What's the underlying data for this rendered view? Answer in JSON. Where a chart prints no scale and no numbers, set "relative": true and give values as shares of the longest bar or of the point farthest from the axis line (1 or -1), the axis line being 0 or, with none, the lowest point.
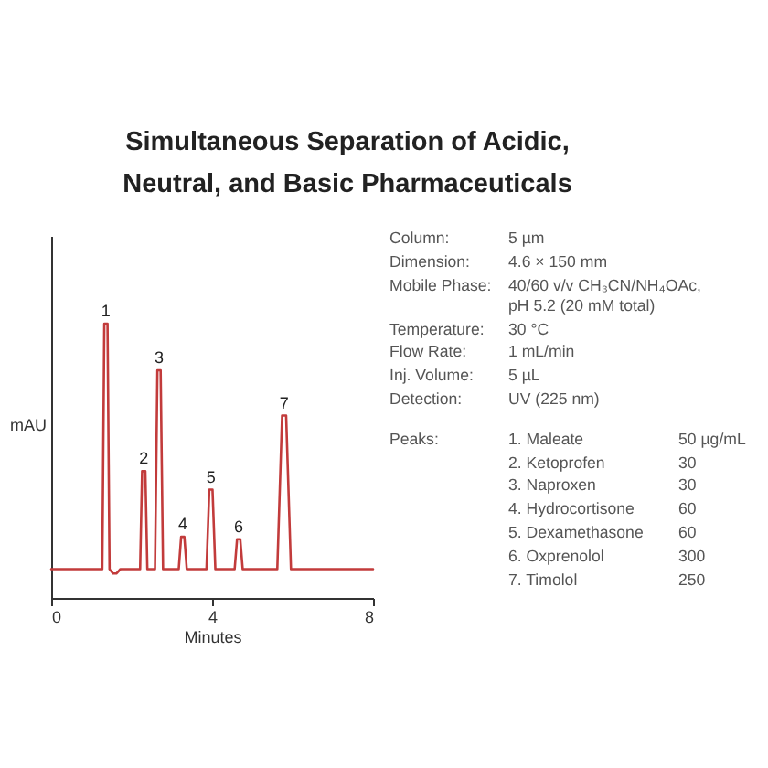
{
  "chart_data": [
    {
      "type": "line",
      "title": "Simultaneous Separation of Acidic, Neutral, and Basic Pharmaceuticals",
      "xlabel": "Minutes",
      "ylabel": "mAU",
      "relative": true,
      "xlim": [
        0,
        8
      ],
      "xticks": [
        0,
        4,
        8
      ],
      "x": [
        0,
        1.27,
        1.32,
        1.36,
        1.4,
        1.45,
        1.54,
        1.62,
        1.72,
        2.21,
        2.26,
        2.3,
        2.34,
        2.39,
        2.58,
        2.64,
        2.68,
        2.72,
        2.78,
        3.17,
        3.23,
        3.27,
        3.31,
        3.37,
        3.86,
        3.93,
        3.97,
        4.01,
        4.08,
        4.56,
        4.62,
        4.66,
        4.7,
        4.76,
        5.62,
        5.74,
        5.79,
        5.84,
        5.96,
        8
      ],
      "series": [
        {
          "color": "#c23b3b",
          "values": [
            0.105,
            0.105,
            1.0,
            1.0,
            1.0,
            0.105,
            0.089,
            0.089,
            0.105,
            0.105,
            0.462,
            0.462,
            0.462,
            0.105,
            0.105,
            0.83,
            0.83,
            0.83,
            0.105,
            0.105,
            0.223,
            0.223,
            0.223,
            0.105,
            0.105,
            0.395,
            0.395,
            0.395,
            0.105,
            0.105,
            0.214,
            0.214,
            0.214,
            0.105,
            0.105,
            0.665,
            0.665,
            0.665,
            0.105,
            0.105
          ]
        }
      ],
      "annotations": [
        {
          "text": "1",
          "x": 1.36,
          "y": 1.0
        },
        {
          "text": "2",
          "x": 2.3,
          "y": 0.462
        },
        {
          "text": "3",
          "x": 2.68,
          "y": 0.83
        },
        {
          "text": "4",
          "x": 3.27,
          "y": 0.223
        },
        {
          "text": "5",
          "x": 3.97,
          "y": 0.395
        },
        {
          "text": "6",
          "x": 4.66,
          "y": 0.214
        },
        {
          "text": "7",
          "x": 5.79,
          "y": 0.665
        }
      ]
    },
    {
      "type": "other",
      "annotations": [
        "Column:",
        "5 µm",
        "Dimension:",
        "4.6 × 150 mm",
        "Mobile Phase:",
        "40/60 v/v CH₃CN/NH₄OAc, pH 5.2 (20 mM total)",
        "Temperature:",
        "30 °C",
        "Flow Rate:",
        "1 mL/min",
        "Inj. Volume:",
        "5 µL",
        "Detection:",
        "UV (225 nm)",
        "Peaks:",
        "1. Maleate",
        "50 µg/mL",
        "2. Ketoprofen",
        "30",
        "3. Naproxen",
        "30",
        "4. Hydrocortisone",
        "60",
        "5. Dexamethasone",
        "60",
        "6. Oxprenolol",
        "300",
        "7. Timolol",
        "250"
      ]
    }
  ]
}
